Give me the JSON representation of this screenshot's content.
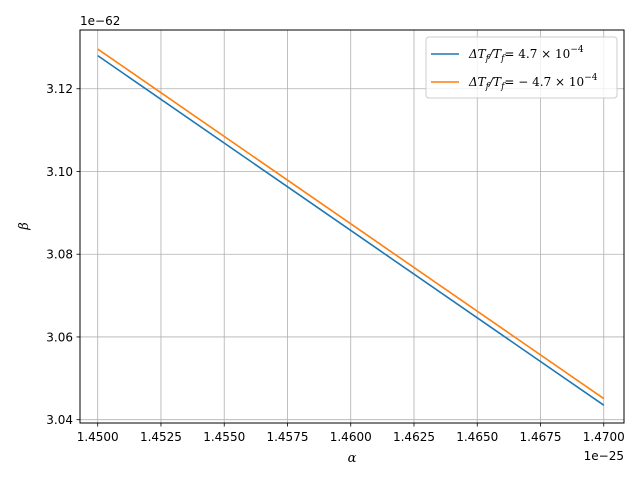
{
  "chart_data": {
    "type": "line",
    "title": "",
    "xlabel": "α",
    "ylabel": "β",
    "x_offset_label": "1e−25",
    "y_offset_label": "1e−62",
    "x_ticks": [
      "1.4500",
      "1.4525",
      "1.4550",
      "1.4575",
      "1.4600",
      "1.4625",
      "1.4650",
      "1.4675",
      "1.4700"
    ],
    "y_ticks": [
      "3.04",
      "3.06",
      "3.08",
      "3.10",
      "3.12"
    ],
    "xlim": [
      1.4493,
      1.4708
    ],
    "ylim": [
      3.0392,
      3.1342
    ],
    "grid": true,
    "legend_position": "top-right",
    "series": [
      {
        "name": "ΔT_f/T_f = 4.7×10^−4",
        "color": "#1f77b4",
        "points": [
          [
            1.45,
            3.128
          ],
          [
            1.47,
            3.0435
          ]
        ]
      },
      {
        "name": "ΔT_f/T_f = −4.7×10^−4",
        "color": "#ff7f0e",
        "points": [
          [
            1.45,
            3.1296
          ],
          [
            1.47,
            3.0451
          ]
        ]
      }
    ]
  },
  "legend": {
    "entries": [
      {
        "lhs": "ΔT",
        "sub1": "f",
        "mid": "/T",
        "sub2": "f",
        "rhs": "= 4.7 × 10",
        "exp": "−4"
      },
      {
        "lhs": "ΔT",
        "sub1": "f",
        "mid": "/T",
        "sub2": "f",
        "rhs": "= − 4.7 × 10",
        "exp": "−4"
      }
    ]
  }
}
